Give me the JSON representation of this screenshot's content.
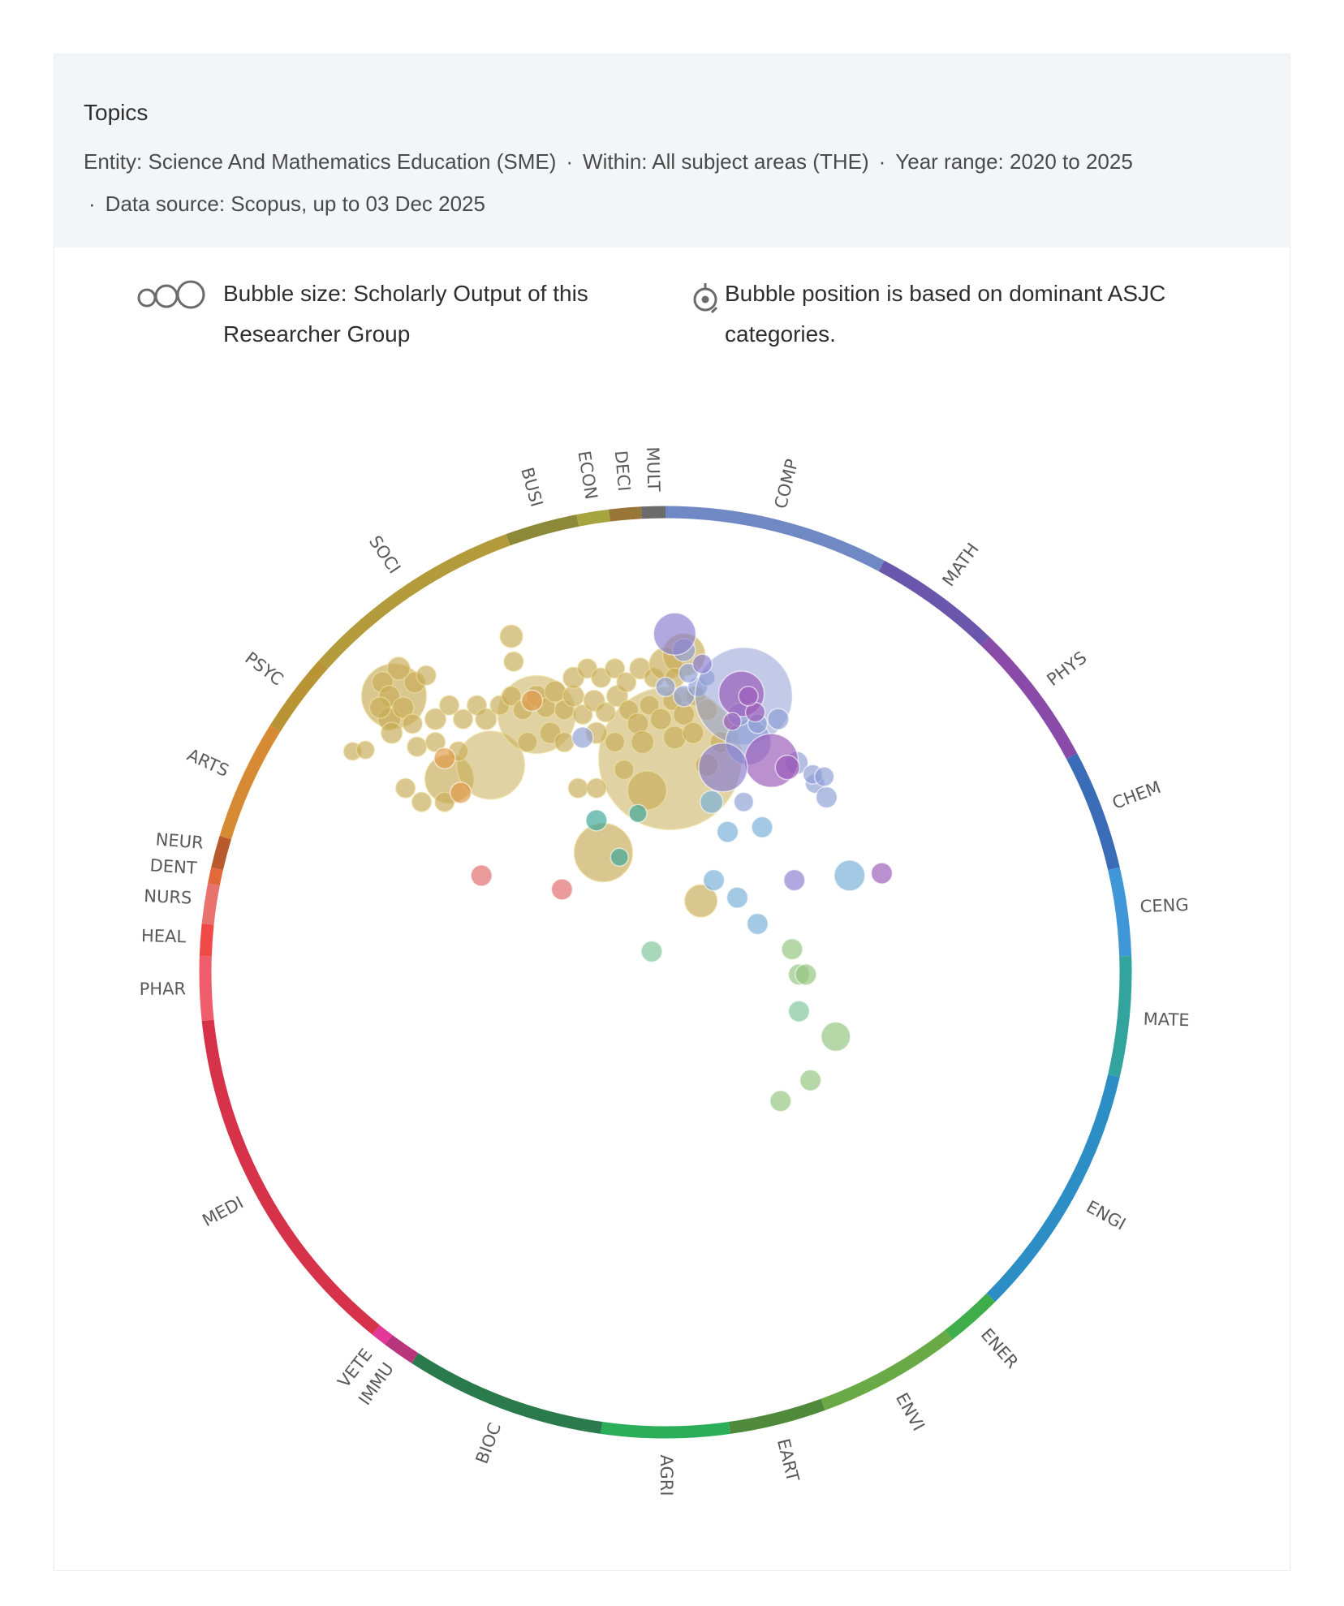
{
  "header": {
    "title": "Topics",
    "meta": [
      "Entity: Science And Mathematics Education (SME)",
      "Within: All subject areas (THE)",
      "Year range: 2020 to 2025",
      "Data source: Scopus, up to 03 Dec 2025"
    ],
    "separator": "·"
  },
  "legend": {
    "size_icon": "bubble-size-icon",
    "size_text": "Bubble size:  Scholarly Output of this Researcher Group",
    "position_icon": "bubble-position-icon",
    "position_text": "Bubble position is based on dominant ASJC categories."
  },
  "chart_data": {
    "type": "scatter",
    "subtype": "radial bubble map",
    "title": "Topics",
    "size_measure": "Scholarly Output",
    "categories": [
      {
        "code": "MULT",
        "start": 357,
        "end": 360,
        "color": "#6b6b6b"
      },
      {
        "code": "COMP",
        "start": 0,
        "end": 28,
        "color": "#7088c4"
      },
      {
        "code": "MATH",
        "start": 28,
        "end": 44,
        "color": "#6a57ad"
      },
      {
        "code": "PHYS",
        "start": 44,
        "end": 62,
        "color": "#8a4aa8"
      },
      {
        "code": "CHEM",
        "start": 62,
        "end": 77,
        "color": "#3a6cb8"
      },
      {
        "code": "CENG",
        "start": 77,
        "end": 88,
        "color": "#3f97d8"
      },
      {
        "code": "MATE",
        "start": 88,
        "end": 103,
        "color": "#33a39e"
      },
      {
        "code": "ENGI",
        "start": 103,
        "end": 135,
        "color": "#2c8ec4"
      },
      {
        "code": "ENER",
        "start": 135,
        "end": 142,
        "color": "#3fae4a"
      },
      {
        "code": "ENVI",
        "start": 142,
        "end": 160,
        "color": "#6aaa46"
      },
      {
        "code": "EART",
        "start": 160,
        "end": 172,
        "color": "#4e8a3a"
      },
      {
        "code": "AGRI",
        "start": 172,
        "end": 188,
        "color": "#2aae5a"
      },
      {
        "code": "BIOC",
        "start": 188,
        "end": 213,
        "color": "#2a7a4c"
      },
      {
        "code": "IMMU",
        "start": 213,
        "end": 217,
        "color": "#b8357e"
      },
      {
        "code": "VETE",
        "start": 217,
        "end": 219,
        "color": "#e3379a"
      },
      {
        "code": "MEDI",
        "start": 219,
        "end": 264,
        "color": "#d6324a"
      },
      {
        "code": "PHAR",
        "start": 264,
        "end": 272,
        "color": "#ef5d6c"
      },
      {
        "code": "HEAL",
        "start": 272,
        "end": 276,
        "color": "#f04a48"
      },
      {
        "code": "NURS",
        "start": 276,
        "end": 281,
        "color": "#e8726d"
      },
      {
        "code": "DENT",
        "start": 281,
        "end": 283,
        "color": "#e3693a"
      },
      {
        "code": "NEUR",
        "start": 283,
        "end": 287,
        "color": "#b85a2e"
      },
      {
        "code": "ARTS",
        "start": 287,
        "end": 302,
        "color": "#d78a34"
      },
      {
        "code": "PSYC",
        "start": 302,
        "end": 312,
        "color": "#b99434"
      },
      {
        "code": "SOCI",
        "start": 312,
        "end": 340,
        "color": "#b39a3a"
      },
      {
        "code": "BUSI",
        "start": 340,
        "end": 349,
        "color": "#8c8a38"
      },
      {
        "code": "ECON",
        "start": 349,
        "end": 353,
        "color": "#a5a43e"
      },
      {
        "code": "DECI",
        "start": 353,
        "end": 357,
        "color": "#987638"
      }
    ],
    "bubble_colors": {
      "soci": "#c9ad5a",
      "social_dark": "#c4a634",
      "comp": "#8f9fd6",
      "phys": "#9b5bb8",
      "math": "#8b7fd0",
      "ceng": "#79b0d8",
      "mate": "#3da69a",
      "envi": "#93c47d",
      "agri": "#7fc49a",
      "medi": "#e06a6a",
      "arts": "#e09a4a"
    },
    "bubbles": [
      {
        "x": -0.335,
        "y": 0.73,
        "r": 14,
        "c": "soci"
      },
      {
        "x": -0.33,
        "y": 0.675,
        "r": 12,
        "c": "soci"
      },
      {
        "x": 0.01,
        "y": 0.465,
        "r": 88,
        "c": "soci"
      },
      {
        "x": -0.135,
        "y": 0.26,
        "r": 36,
        "c": "soci"
      },
      {
        "x": -0.47,
        "y": 0.42,
        "r": 30,
        "c": "soci"
      },
      {
        "x": 0.077,
        "y": 0.155,
        "r": 20,
        "c": "soci"
      },
      {
        "x": -0.565,
        "y": 0.4,
        "r": 12,
        "c": "soci"
      },
      {
        "x": -0.68,
        "y": 0.48,
        "r": 11,
        "c": "soci"
      },
      {
        "x": -0.652,
        "y": 0.483,
        "r": 11,
        "c": "soci"
      },
      {
        "x": -0.38,
        "y": 0.45,
        "r": 42,
        "c": "soci"
      },
      {
        "x": -0.28,
        "y": 0.56,
        "r": 48,
        "c": "soci"
      },
      {
        "x": -0.59,
        "y": 0.6,
        "r": 40,
        "c": "soci"
      },
      {
        "x": -0.6,
        "y": 0.55,
        "r": 14,
        "c": "soci"
      },
      {
        "x": -0.545,
        "y": 0.63,
        "r": 13,
        "c": "soci"
      },
      {
        "x": -0.52,
        "y": 0.645,
        "r": 12,
        "c": "soci"
      },
      {
        "x": -0.58,
        "y": 0.66,
        "r": 14,
        "c": "soci"
      },
      {
        "x": -0.615,
        "y": 0.63,
        "r": 13,
        "c": "soci"
      },
      {
        "x": -0.6,
        "y": 0.6,
        "r": 13,
        "c": "soci"
      },
      {
        "x": -0.62,
        "y": 0.575,
        "r": 13,
        "c": "soci"
      },
      {
        "x": -0.57,
        "y": 0.575,
        "r": 13,
        "c": "soci"
      },
      {
        "x": -0.55,
        "y": 0.54,
        "r": 12,
        "c": "soci"
      },
      {
        "x": -0.595,
        "y": 0.52,
        "r": 13,
        "c": "soci"
      },
      {
        "x": -0.54,
        "y": 0.49,
        "r": 12,
        "c": "soci"
      },
      {
        "x": -0.5,
        "y": 0.5,
        "r": 12,
        "c": "soci"
      },
      {
        "x": -0.5,
        "y": 0.55,
        "r": 13,
        "c": "soci"
      },
      {
        "x": -0.47,
        "y": 0.58,
        "r": 12,
        "c": "soci"
      },
      {
        "x": -0.44,
        "y": 0.55,
        "r": 12,
        "c": "soci"
      },
      {
        "x": -0.41,
        "y": 0.58,
        "r": 12,
        "c": "soci"
      },
      {
        "x": -0.39,
        "y": 0.55,
        "r": 13,
        "c": "soci"
      },
      {
        "x": -0.36,
        "y": 0.58,
        "r": 12,
        "c": "soci"
      },
      {
        "x": -0.335,
        "y": 0.6,
        "r": 12,
        "c": "soci"
      },
      {
        "x": -0.31,
        "y": 0.57,
        "r": 12,
        "c": "soci"
      },
      {
        "x": -0.28,
        "y": 0.6,
        "r": 13,
        "c": "soci"
      },
      {
        "x": -0.26,
        "y": 0.575,
        "r": 12,
        "c": "soci"
      },
      {
        "x": -0.24,
        "y": 0.61,
        "r": 13,
        "c": "soci"
      },
      {
        "x": -0.22,
        "y": 0.57,
        "r": 12,
        "c": "soci"
      },
      {
        "x": -0.2,
        "y": 0.6,
        "r": 13,
        "c": "soci"
      },
      {
        "x": -0.18,
        "y": 0.56,
        "r": 12,
        "c": "soci"
      },
      {
        "x": -0.155,
        "y": 0.59,
        "r": 13,
        "c": "soci"
      },
      {
        "x": -0.13,
        "y": 0.565,
        "r": 12,
        "c": "soci"
      },
      {
        "x": -0.105,
        "y": 0.6,
        "r": 13,
        "c": "soci"
      },
      {
        "x": -0.08,
        "y": 0.57,
        "r": 12,
        "c": "soci"
      },
      {
        "x": -0.06,
        "y": 0.54,
        "r": 13,
        "c": "soci"
      },
      {
        "x": -0.035,
        "y": 0.58,
        "r": 12,
        "c": "soci"
      },
      {
        "x": -0.01,
        "y": 0.55,
        "r": 13,
        "c": "soci"
      },
      {
        "x": 0.015,
        "y": 0.59,
        "r": 12,
        "c": "soci"
      },
      {
        "x": 0.04,
        "y": 0.56,
        "r": 13,
        "c": "soci"
      },
      {
        "x": 0.065,
        "y": 0.6,
        "r": 12,
        "c": "soci"
      },
      {
        "x": 0.09,
        "y": 0.57,
        "r": 13,
        "c": "soci"
      },
      {
        "x": -0.2,
        "y": 0.64,
        "r": 13,
        "c": "soci"
      },
      {
        "x": -0.17,
        "y": 0.66,
        "r": 12,
        "c": "soci"
      },
      {
        "x": -0.14,
        "y": 0.64,
        "r": 12,
        "c": "soci"
      },
      {
        "x": -0.11,
        "y": 0.66,
        "r": 12,
        "c": "soci"
      },
      {
        "x": -0.085,
        "y": 0.63,
        "r": 12,
        "c": "soci"
      },
      {
        "x": -0.055,
        "y": 0.66,
        "r": 13,
        "c": "soci"
      },
      {
        "x": -0.025,
        "y": 0.64,
        "r": 12,
        "c": "soci"
      },
      {
        "x": 0.0,
        "y": 0.67,
        "r": 20,
        "c": "soci"
      },
      {
        "x": 0.04,
        "y": 0.69,
        "r": 26,
        "c": "soci"
      },
      {
        "x": 0.02,
        "y": 0.64,
        "r": 12,
        "c": "soci"
      },
      {
        "x": -0.25,
        "y": 0.52,
        "r": 13,
        "c": "soci"
      },
      {
        "x": -0.3,
        "y": 0.5,
        "r": 12,
        "c": "soci"
      },
      {
        "x": -0.22,
        "y": 0.5,
        "r": 12,
        "c": "soci"
      },
      {
        "x": -0.15,
        "y": 0.52,
        "r": 13,
        "c": "soci"
      },
      {
        "x": -0.11,
        "y": 0.5,
        "r": 12,
        "c": "soci"
      },
      {
        "x": -0.05,
        "y": 0.5,
        "r": 14,
        "c": "soci"
      },
      {
        "x": 0.02,
        "y": 0.51,
        "r": 14,
        "c": "soci"
      },
      {
        "x": 0.06,
        "y": 0.52,
        "r": 13,
        "c": "soci"
      },
      {
        "x": 0.09,
        "y": 0.45,
        "r": 14,
        "c": "soci"
      },
      {
        "x": 0.12,
        "y": 0.5,
        "r": 13,
        "c": "soci"
      },
      {
        "x": -0.09,
        "y": 0.44,
        "r": 12,
        "c": "soci"
      },
      {
        "x": -0.19,
        "y": 0.4,
        "r": 12,
        "c": "soci"
      },
      {
        "x": -0.15,
        "y": 0.4,
        "r": 12,
        "c": "soci"
      },
      {
        "x": -0.04,
        "y": 0.395,
        "r": 24,
        "c": "soci"
      },
      {
        "x": -0.48,
        "y": 0.37,
        "r": 12,
        "c": "soci"
      },
      {
        "x": -0.53,
        "y": 0.37,
        "r": 12,
        "c": "soci"
      },
      {
        "x": -0.45,
        "y": 0.48,
        "r": 12,
        "c": "soci"
      },
      {
        "x": -0.48,
        "y": 0.465,
        "r": 13,
        "c": "arts"
      },
      {
        "x": -0.445,
        "y": 0.39,
        "r": 13,
        "c": "arts"
      },
      {
        "x": -0.29,
        "y": 0.59,
        "r": 13,
        "c": "arts"
      },
      {
        "x": -0.18,
        "y": 0.51,
        "r": 13,
        "c": "comp"
      },
      {
        "x": 0.04,
        "y": 0.6,
        "r": 13,
        "c": "comp"
      },
      {
        "x": 0.0,
        "y": 0.62,
        "r": 12,
        "c": "comp"
      },
      {
        "x": 0.07,
        "y": 0.62,
        "r": 12,
        "c": "comp"
      },
      {
        "x": 0.05,
        "y": 0.65,
        "r": 12,
        "c": "comp"
      },
      {
        "x": 0.04,
        "y": 0.7,
        "r": 14,
        "c": "comp"
      },
      {
        "x": 0.09,
        "y": 0.64,
        "r": 10,
        "c": "comp"
      },
      {
        "x": 0.17,
        "y": 0.6,
        "r": 60,
        "c": "comp"
      },
      {
        "x": 0.18,
        "y": 0.5,
        "r": 28,
        "c": "comp"
      },
      {
        "x": 0.16,
        "y": 0.56,
        "r": 14,
        "c": "comp"
      },
      {
        "x": 0.2,
        "y": 0.54,
        "r": 12,
        "c": "comp"
      },
      {
        "x": 0.245,
        "y": 0.55,
        "r": 13,
        "c": "comp"
      },
      {
        "x": 0.285,
        "y": 0.455,
        "r": 14,
        "c": "comp"
      },
      {
        "x": 0.325,
        "y": 0.41,
        "r": 12,
        "c": "comp"
      },
      {
        "x": 0.32,
        "y": 0.43,
        "r": 12,
        "c": "comp"
      },
      {
        "x": 0.345,
        "y": 0.425,
        "r": 12,
        "c": "comp"
      },
      {
        "x": 0.35,
        "y": 0.38,
        "r": 13,
        "c": "comp"
      },
      {
        "x": 0.17,
        "y": 0.37,
        "r": 12,
        "c": "comp"
      },
      {
        "x": 0.165,
        "y": 0.605,
        "r": 28,
        "c": "phys"
      },
      {
        "x": 0.145,
        "y": 0.545,
        "r": 11,
        "c": "phys"
      },
      {
        "x": 0.195,
        "y": 0.565,
        "r": 12,
        "c": "phys"
      },
      {
        "x": 0.18,
        "y": 0.6,
        "r": 12,
        "c": "phys"
      },
      {
        "x": 0.23,
        "y": 0.46,
        "r": 33,
        "c": "phys"
      },
      {
        "x": 0.265,
        "y": 0.445,
        "r": 15,
        "c": "phys"
      },
      {
        "x": 0.02,
        "y": 0.735,
        "r": 26,
        "c": "math"
      },
      {
        "x": 0.08,
        "y": 0.67,
        "r": 12,
        "c": "math"
      },
      {
        "x": 0.125,
        "y": 0.445,
        "r": 30,
        "c": "math"
      },
      {
        "x": -0.06,
        "y": 0.345,
        "r": 11,
        "c": "mate"
      },
      {
        "x": 0.1,
        "y": 0.37,
        "r": 14,
        "c": "ceng"
      },
      {
        "x": 0.135,
        "y": 0.305,
        "r": 13,
        "c": "ceng"
      },
      {
        "x": 0.21,
        "y": 0.315,
        "r": 13,
        "c": "ceng"
      },
      {
        "x": -0.1,
        "y": 0.25,
        "r": 11,
        "c": "mate"
      },
      {
        "x": -0.15,
        "y": 0.33,
        "r": 13,
        "c": "mate"
      },
      {
        "x": 0.105,
        "y": 0.2,
        "r": 13,
        "c": "ceng"
      },
      {
        "x": 0.156,
        "y": 0.162,
        "r": 13,
        "c": "ceng"
      },
      {
        "x": 0.2,
        "y": 0.105,
        "r": 13,
        "c": "ceng"
      },
      {
        "x": 0.28,
        "y": 0.2,
        "r": 13,
        "c": "math"
      },
      {
        "x": 0.4,
        "y": 0.21,
        "r": 19,
        "c": "ceng"
      },
      {
        "x": 0.47,
        "y": 0.215,
        "r": 13,
        "c": "phys"
      },
      {
        "x": -0.03,
        "y": 0.045,
        "r": 13,
        "c": "agri"
      },
      {
        "x": 0.275,
        "y": 0.05,
        "r": 13,
        "c": "envi"
      },
      {
        "x": 0.29,
        "y": -0.005,
        "r": 13,
        "c": "envi"
      },
      {
        "x": 0.305,
        "y": -0.005,
        "r": 13,
        "c": "envi"
      },
      {
        "x": 0.29,
        "y": -0.085,
        "r": 13,
        "c": "agri"
      },
      {
        "x": 0.37,
        "y": -0.14,
        "r": 18,
        "c": "envi"
      },
      {
        "x": 0.315,
        "y": -0.235,
        "r": 13,
        "c": "envi"
      },
      {
        "x": 0.25,
        "y": -0.28,
        "r": 13,
        "c": "envi"
      },
      {
        "x": -0.4,
        "y": 0.21,
        "r": 13,
        "c": "medi"
      },
      {
        "x": -0.225,
        "y": 0.18,
        "r": 13,
        "c": "medi"
      }
    ]
  }
}
